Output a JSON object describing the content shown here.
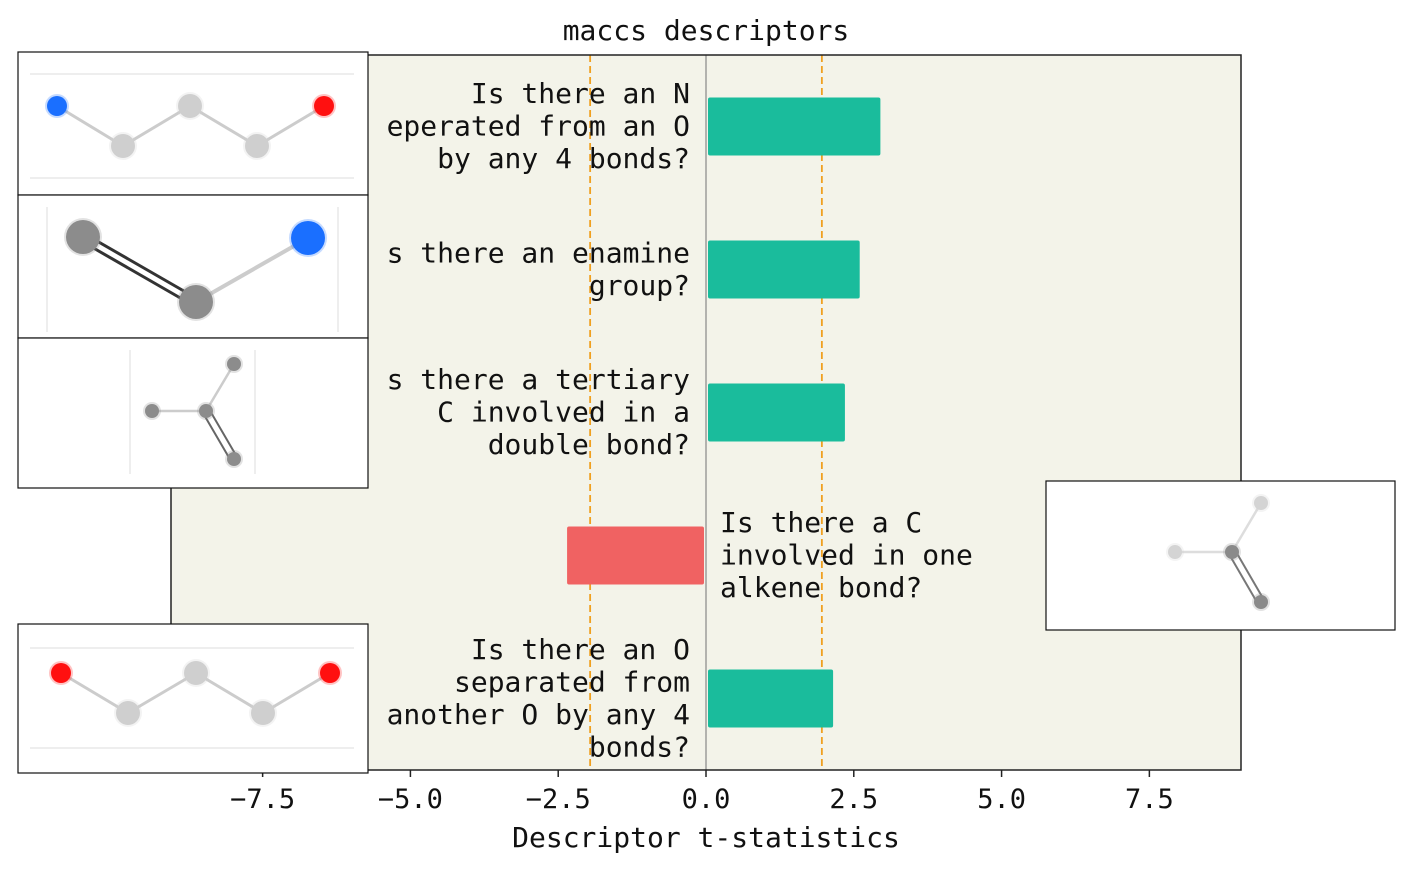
{
  "chart_data": {
    "type": "bar",
    "orientation": "horizontal",
    "title": "maccs descriptors",
    "xlabel": "Descriptor t-statistics",
    "xlim": [
      -9.05,
      9.05
    ],
    "xticks": [
      -7.5,
      -5.0,
      -2.5,
      0.0,
      2.5,
      5.0,
      7.5
    ],
    "xtick_labels": [
      "−7.5",
      "−5.0",
      "−2.5",
      "0.0",
      "2.5",
      "5.0",
      "7.5"
    ],
    "significance_lines": [
      -1.96,
      1.96
    ],
    "colors": {
      "positive": "#1abc9c",
      "negative": "#f06262",
      "plot_bg": "#f3f3e9",
      "threshold": "#f0a020",
      "zero_line": "#888888"
    },
    "bars": [
      {
        "value": 2.95,
        "label_lines": [
          "Is there an N",
          "eperated from an O",
          "by any 4 bonds?"
        ],
        "molecule": "n-c-c-c-o-chain",
        "side": "left"
      },
      {
        "value": 2.6,
        "label_lines": [
          "s there an enamine",
          "group?"
        ],
        "molecule": "enamine",
        "side": "left"
      },
      {
        "value": 2.35,
        "label_lines": [
          "s there a tertiary",
          "C involved in a",
          "double bond?"
        ],
        "molecule": "tertiary-alkene",
        "side": "left"
      },
      {
        "value": -2.35,
        "label_lines": [
          "Is there a C",
          "involved in one",
          "alkene bond?"
        ],
        "molecule": "tertiary-alkene-faded",
        "side": "right"
      },
      {
        "value": 2.15,
        "label_lines": [
          "Is there an O",
          "separated from",
          "another O by any 4",
          "bonds?"
        ],
        "molecule": "o-c-c-c-o-chain",
        "side": "left"
      }
    ]
  }
}
